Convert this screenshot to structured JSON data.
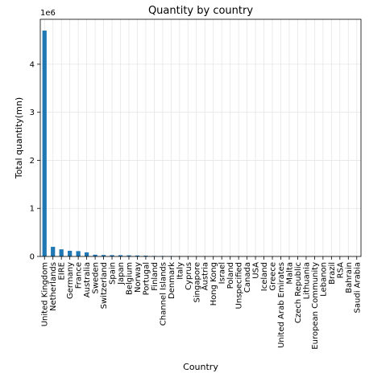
{
  "chart_data": {
    "type": "bar",
    "title": "Quantity by country",
    "xlabel": "Country",
    "ylabel": "Total quantity(mn)",
    "offset_text": "1e6",
    "categories": [
      "United Kingdom",
      "Netherlands",
      "EIRE",
      "Germany",
      "France",
      "Australia",
      "Sweden",
      "Switzerland",
      "Spain",
      "Japan",
      "Belgium",
      "Norway",
      "Portugal",
      "Finland",
      "Channel Islands",
      "Denmark",
      "Italy",
      "Cyprus",
      "Singapore",
      "Austria",
      "Hong Kong",
      "Israel",
      "Poland",
      "Unspecified",
      "Canada",
      "USA",
      "Iceland",
      "Greece",
      "United Arab Emirates",
      "Malta",
      "Czech Republic",
      "Lithuania",
      "European Community",
      "Lebanon",
      "Brazil",
      "RSA",
      "Bahrain",
      "Saudi Arabia"
    ],
    "values": [
      4700000,
      200000,
      148000,
      118000,
      111000,
      84000,
      36000,
      30000,
      27000,
      26000,
      23000,
      19000,
      16000,
      10000,
      9500,
      8200,
      8000,
      6300,
      5200,
      4900,
      4800,
      4400,
      3700,
      3300,
      2800,
      2500,
      2500,
      1600,
      1000,
      950,
      600,
      650,
      500,
      390,
      360,
      350,
      260,
      80
    ],
    "ylim": [
      0,
      4935000
    ],
    "yticks": [
      0,
      1000000,
      2000000,
      3000000,
      4000000
    ],
    "ytick_labels": [
      "0",
      "1",
      "2",
      "3",
      "4"
    ],
    "grid": true,
    "bar_color": "#1f77b4"
  }
}
